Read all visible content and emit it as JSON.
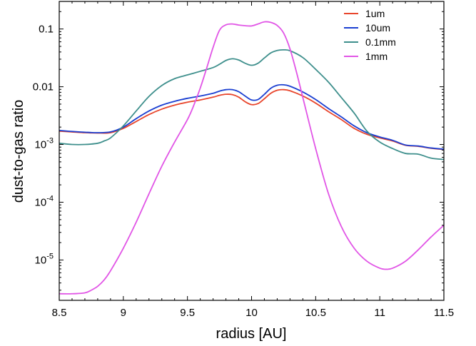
{
  "chart_data": {
    "type": "line",
    "title": "",
    "xlabel": "radius [AU]",
    "ylabel": "dust-to-gas ratio",
    "xlim": [
      8.5,
      11.5
    ],
    "ylim": [
      2e-06,
      0.3
    ],
    "yscale": "log",
    "x_ticks": [
      "8.5",
      "9",
      "9.5",
      "10",
      "10.5",
      "11",
      "11.5"
    ],
    "x_tick_values": [
      8.5,
      9,
      9.5,
      10,
      10.5,
      11,
      11.5
    ],
    "y_ticks": [
      {
        "base": "10",
        "exp": "-5",
        "value": 1e-05
      },
      {
        "base": "10",
        "exp": "-4",
        "value": 0.0001
      },
      {
        "base": "10",
        "exp": "-3",
        "value": 0.001
      },
      {
        "base": "0.01",
        "exp": "",
        "value": 0.01
      },
      {
        "base": "0.1",
        "exp": "",
        "value": 0.1
      }
    ],
    "grid": false,
    "legend_position": "top-right",
    "series": [
      {
        "name": "1um",
        "color": "#e8452c",
        "x": [
          8.5,
          8.6,
          8.7,
          8.8,
          8.9,
          9.0,
          9.1,
          9.2,
          9.3,
          9.4,
          9.5,
          9.6,
          9.7,
          9.75,
          9.8,
          9.85,
          9.9,
          9.95,
          10.0,
          10.05,
          10.1,
          10.15,
          10.2,
          10.25,
          10.3,
          10.4,
          10.5,
          10.6,
          10.7,
          10.8,
          10.9,
          11.0,
          11.1,
          11.2,
          11.3,
          11.4,
          11.5
        ],
        "y": [
          0.0017,
          0.00165,
          0.0016,
          0.00158,
          0.0016,
          0.0019,
          0.0025,
          0.0033,
          0.0041,
          0.0048,
          0.0054,
          0.0059,
          0.0066,
          0.0071,
          0.0074,
          0.0073,
          0.0066,
          0.0055,
          0.0049,
          0.0051,
          0.0062,
          0.0077,
          0.0087,
          0.0089,
          0.0085,
          0.0069,
          0.0052,
          0.0037,
          0.0027,
          0.0019,
          0.0015,
          0.0013,
          0.00115,
          0.00097,
          0.00093,
          0.00086,
          0.00082
        ]
      },
      {
        "name": "10um",
        "color": "#1b3fd1",
        "x": [
          8.5,
          8.6,
          8.7,
          8.8,
          8.9,
          9.0,
          9.1,
          9.2,
          9.3,
          9.4,
          9.5,
          9.6,
          9.7,
          9.75,
          9.8,
          9.85,
          9.9,
          9.95,
          10.0,
          10.05,
          10.1,
          10.15,
          10.2,
          10.25,
          10.3,
          10.4,
          10.5,
          10.6,
          10.7,
          10.8,
          10.9,
          11.0,
          11.1,
          11.2,
          11.3,
          11.4,
          11.5
        ],
        "y": [
          0.00175,
          0.00168,
          0.00163,
          0.0016,
          0.00165,
          0.002,
          0.0028,
          0.0038,
          0.0048,
          0.0056,
          0.0063,
          0.0069,
          0.0077,
          0.0084,
          0.0089,
          0.0089,
          0.0082,
          0.0069,
          0.0059,
          0.006,
          0.0074,
          0.0094,
          0.0106,
          0.0108,
          0.0102,
          0.0081,
          0.006,
          0.0042,
          0.003,
          0.0021,
          0.0016,
          0.00135,
          0.00118,
          0.00098,
          0.00094,
          0.00087,
          0.00083
        ]
      },
      {
        "name": "0.1mm",
        "color": "#3e8f8c",
        "x": [
          8.5,
          8.6,
          8.7,
          8.8,
          8.85,
          8.9,
          9.0,
          9.1,
          9.2,
          9.3,
          9.4,
          9.5,
          9.6,
          9.7,
          9.75,
          9.8,
          9.85,
          9.9,
          9.95,
          10.0,
          10.05,
          10.1,
          10.15,
          10.2,
          10.25,
          10.3,
          10.4,
          10.5,
          10.6,
          10.7,
          10.8,
          10.9,
          11.0,
          11.1,
          11.2,
          11.3,
          11.4,
          11.5
        ],
        "y": [
          0.00105,
          0.001,
          0.001,
          0.00105,
          0.00115,
          0.0013,
          0.0021,
          0.0038,
          0.0068,
          0.0105,
          0.0138,
          0.016,
          0.0185,
          0.0215,
          0.0245,
          0.0285,
          0.0305,
          0.029,
          0.0255,
          0.0235,
          0.0255,
          0.0315,
          0.0385,
          0.0425,
          0.0435,
          0.042,
          0.032,
          0.02,
          0.012,
          0.0065,
          0.0035,
          0.0017,
          0.0011,
          0.00085,
          0.0007,
          0.00068,
          0.00058,
          0.00055
        ]
      },
      {
        "name": "1mm",
        "color": "#e155e6",
        "x": [
          8.5,
          8.6,
          8.7,
          8.75,
          8.8,
          8.85,
          8.9,
          9.0,
          9.1,
          9.2,
          9.3,
          9.4,
          9.5,
          9.55,
          9.6,
          9.65,
          9.7,
          9.75,
          9.8,
          9.85,
          9.9,
          9.95,
          10.0,
          10.05,
          10.1,
          10.15,
          10.2,
          10.25,
          10.3,
          10.35,
          10.4,
          10.5,
          10.6,
          10.7,
          10.8,
          10.9,
          11.0,
          11.05,
          11.1,
          11.2,
          11.3,
          11.4,
          11.5
        ],
        "y": [
          2.6e-06,
          2.6e-06,
          2.7e-06,
          3e-06,
          3.5e-06,
          4.5e-06,
          6.5e-06,
          1.6e-05,
          4.5e-05,
          0.00014,
          0.00042,
          0.0011,
          0.0027,
          0.0048,
          0.0095,
          0.021,
          0.048,
          0.095,
          0.118,
          0.122,
          0.117,
          0.114,
          0.113,
          0.122,
          0.133,
          0.13,
          0.115,
          0.085,
          0.045,
          0.018,
          0.0065,
          0.00085,
          0.00014,
          3.8e-05,
          1.6e-05,
          9.5e-06,
          7.2e-06,
          6.9e-06,
          7.2e-06,
          9.5e-06,
          1.5e-05,
          2.5e-05,
          4e-05
        ]
      }
    ]
  }
}
